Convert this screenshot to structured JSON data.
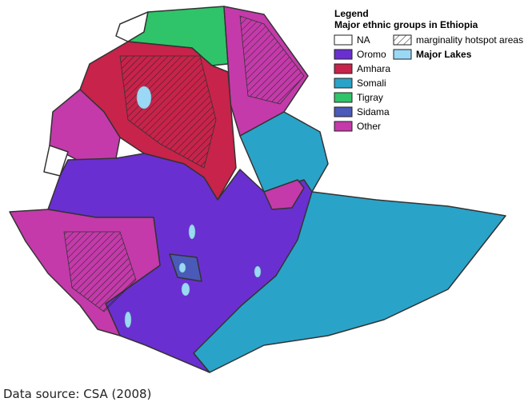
{
  "legend": {
    "title": "Legend",
    "subtitle": "Major ethnic groups in Ethiopia",
    "items": [
      {
        "label": "NA",
        "color": "#ffffff"
      },
      {
        "label": "Oromo",
        "color": "#6a2fd0"
      },
      {
        "label": "Amhara",
        "color": "#c8234a"
      },
      {
        "label": "Somali",
        "color": "#2aa3c8"
      },
      {
        "label": "Tigray",
        "color": "#2fc46a"
      },
      {
        "label": "Sidama",
        "color": "#4a5ab8"
      },
      {
        "label": "Other",
        "color": "#c43aaa"
      }
    ],
    "hotspot": "marginality hotspot areas",
    "lakes": {
      "label": "Major Lakes",
      "color": "#9ad8f5"
    }
  },
  "source": "Data source: CSA (2008)"
}
